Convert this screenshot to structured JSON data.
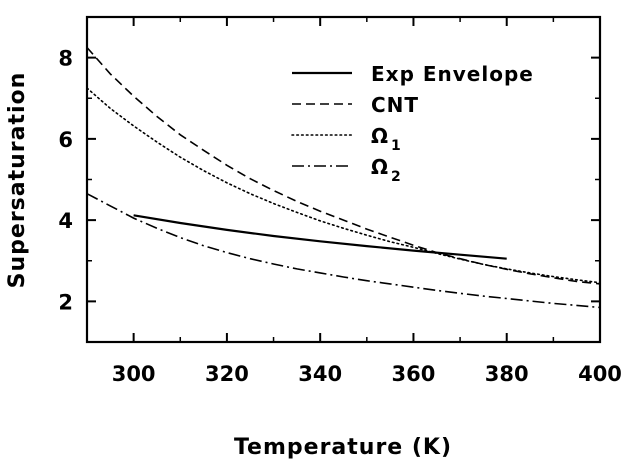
{
  "chart_data": {
    "type": "line",
    "title": "",
    "xlabel": "Temperature (K)",
    "ylabel": "Supersaturation",
    "xlim": [
      290,
      400
    ],
    "ylim": [
      1,
      9
    ],
    "xticks": [
      300,
      320,
      340,
      360,
      380,
      400
    ],
    "yticks": [
      2,
      4,
      6,
      8
    ],
    "grid": false,
    "legend_position": "top-right",
    "series": [
      {
        "name": "Exp Envelope",
        "sub": "",
        "style": "solid",
        "x": [
          300,
          310,
          320,
          330,
          340,
          350,
          360,
          370,
          380
        ],
        "y": [
          4.12,
          3.93,
          3.76,
          3.61,
          3.48,
          3.36,
          3.25,
          3.15,
          3.05
        ]
      },
      {
        "name": "CNT",
        "sub": "",
        "style": "dashed",
        "x": [
          290,
          295,
          300,
          305,
          310,
          315,
          320,
          325,
          330,
          335,
          340,
          345,
          350,
          355,
          360,
          365,
          370,
          375,
          380,
          385,
          390,
          395,
          400
        ],
        "y": [
          8.25,
          7.6,
          7.05,
          6.55,
          6.1,
          5.72,
          5.35,
          5.02,
          4.73,
          4.46,
          4.22,
          4.0,
          3.78,
          3.58,
          3.38,
          3.2,
          3.05,
          2.91,
          2.79,
          2.68,
          2.58,
          2.49,
          2.43
        ]
      },
      {
        "name": "Ω",
        "sub": "1",
        "style": "dotted",
        "x": [
          290,
          295,
          300,
          305,
          310,
          315,
          320,
          325,
          330,
          335,
          340,
          345,
          350,
          355,
          360,
          365,
          370,
          375,
          380,
          385,
          390,
          395,
          400
        ],
        "y": [
          7.25,
          6.75,
          6.32,
          5.92,
          5.55,
          5.22,
          4.92,
          4.65,
          4.41,
          4.19,
          3.98,
          3.8,
          3.63,
          3.47,
          3.33,
          3.18,
          3.04,
          2.91,
          2.8,
          2.7,
          2.61,
          2.53,
          2.46
        ]
      },
      {
        "name": "Ω",
        "sub": "2",
        "style": "dashdot",
        "x": [
          290,
          295,
          300,
          305,
          310,
          315,
          320,
          325,
          330,
          335,
          340,
          345,
          350,
          355,
          360,
          365,
          370,
          375,
          380,
          385,
          390,
          395,
          400
        ],
        "y": [
          4.65,
          4.35,
          4.05,
          3.8,
          3.57,
          3.37,
          3.2,
          3.05,
          2.92,
          2.8,
          2.7,
          2.6,
          2.51,
          2.43,
          2.35,
          2.27,
          2.2,
          2.13,
          2.07,
          2.01,
          1.95,
          1.9,
          1.85
        ]
      }
    ]
  }
}
